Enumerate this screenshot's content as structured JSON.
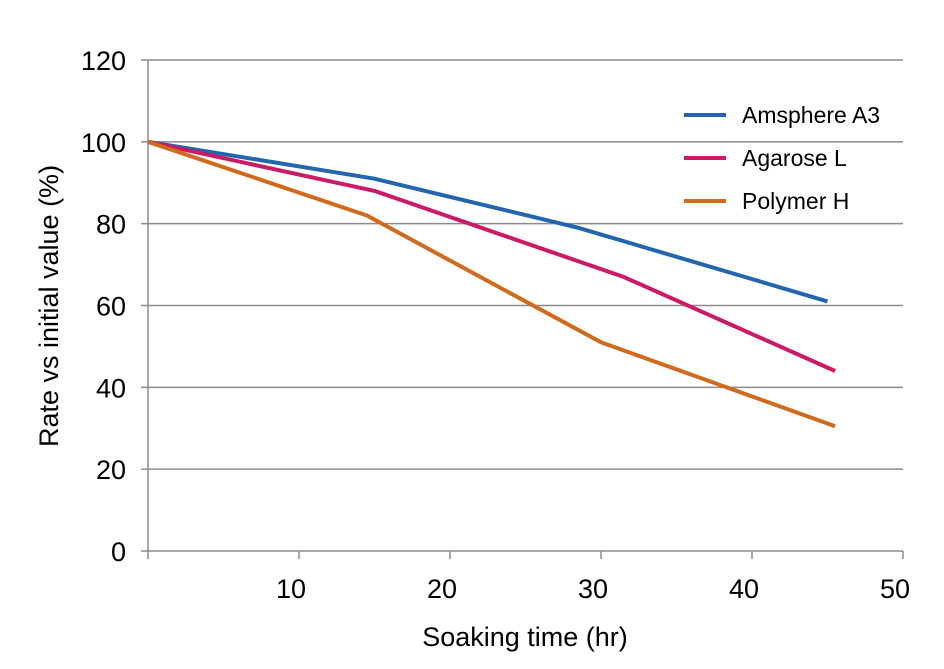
{
  "chart_data": {
    "type": "line",
    "title": "",
    "xlabel": "Soaking time (hr)",
    "ylabel": "Rate vs initial value (%)",
    "xlim": [
      0,
      50
    ],
    "ylim": [
      0,
      120
    ],
    "xticks": [
      10,
      20,
      30,
      40,
      50
    ],
    "yticks": [
      0,
      20,
      40,
      60,
      80,
      100,
      120
    ],
    "grid": "horizontal",
    "legend_position": "top-right",
    "series": [
      {
        "name": "Amsphere A3",
        "color": "#2266b0",
        "x": [
          0,
          15,
          28.5,
          45
        ],
        "y": [
          100,
          91,
          79,
          61
        ]
      },
      {
        "name": "Agarose L",
        "color": "#cc1a66",
        "x": [
          0,
          15,
          31.5,
          45.5
        ],
        "y": [
          100,
          88,
          67,
          44
        ]
      },
      {
        "name": "Polymer H",
        "color": "#d26a1c",
        "x": [
          0,
          14.5,
          30,
          45.5
        ],
        "y": [
          100,
          82,
          51,
          30.5
        ]
      }
    ]
  }
}
